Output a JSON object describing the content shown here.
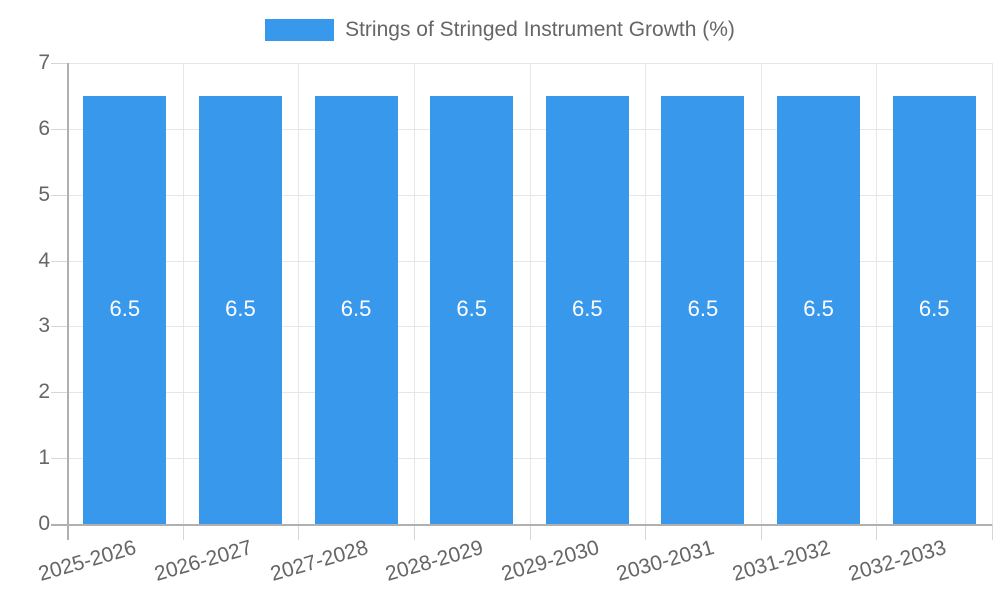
{
  "chart_data": {
    "type": "bar",
    "title": "Strings of Stringed Instrument Growth (%)",
    "xlabel": "",
    "ylabel": "",
    "categories": [
      "2025-2026",
      "2026-2027",
      "2027-2028",
      "2028-2029",
      "2029-2030",
      "2030-2031",
      "2031-2032",
      "2032-2033"
    ],
    "series": [
      {
        "name": "Strings of Stringed Instrument Growth (%)",
        "values": [
          6.5,
          6.5,
          6.5,
          6.5,
          6.5,
          6.5,
          6.5,
          6.5
        ]
      }
    ],
    "bar_value_labels": [
      "6.5",
      "6.5",
      "6.5",
      "6.5",
      "6.5",
      "6.5",
      "6.5",
      "6.5"
    ],
    "ylim": [
      0,
      7
    ],
    "yticks": [
      0,
      1,
      2,
      3,
      4,
      5,
      6,
      7
    ],
    "grid": true,
    "legend_position": "top",
    "legend": {
      "items": [
        {
          "label": "Strings of Stringed Instrument Growth (%)",
          "color": "#3898ec"
        }
      ]
    }
  },
  "colors": {
    "bar": "#3898ec",
    "bar_label_text": "#ffffff",
    "axis_text": "#666666",
    "gridline": "#e6e6e6",
    "axis_line": "#b0b0b0",
    "tick_mark": "#d6d6d6",
    "background": "#ffffff"
  }
}
